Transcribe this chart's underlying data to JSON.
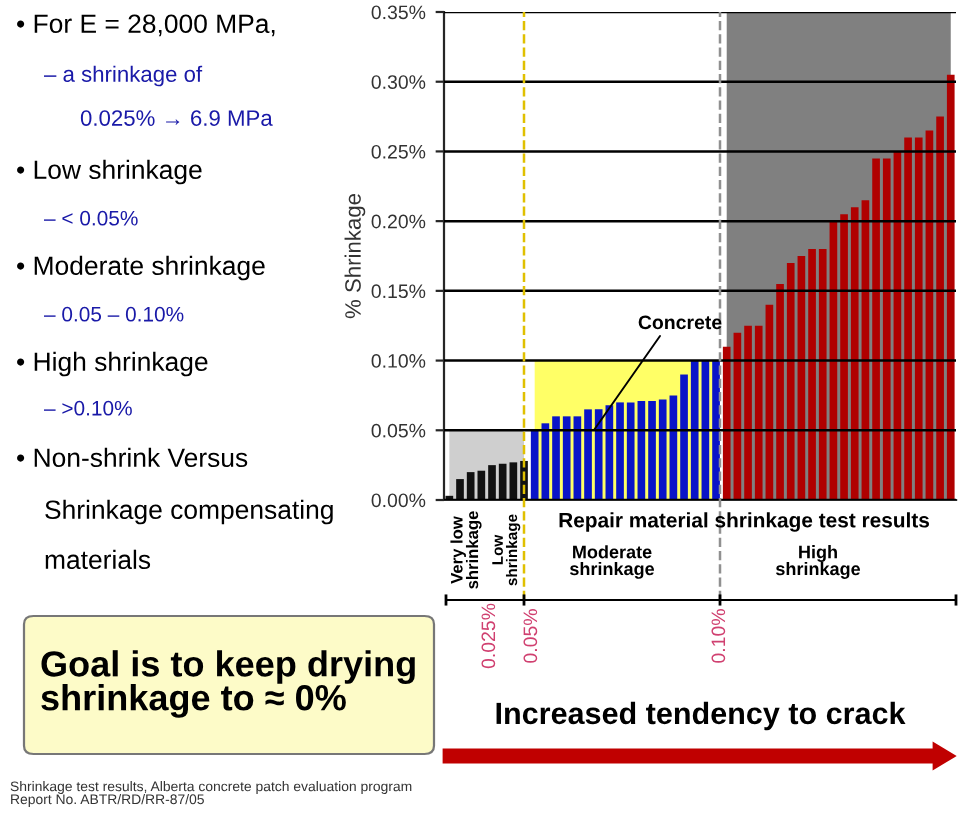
{
  "chart_data": {
    "type": "bar",
    "ylabel": "% Shrinkage",
    "ylim": [
      0,
      0.35
    ],
    "yticks": [
      {
        "value": 0,
        "label": "0.00%"
      },
      {
        "value": 0.05,
        "label": "0.05%"
      },
      {
        "value": 0.1,
        "label": "0.10%"
      },
      {
        "value": 0.15,
        "label": "0.15%"
      },
      {
        "value": 0.2,
        "label": "0.20%"
      },
      {
        "value": 0.25,
        "label": "0.25%"
      },
      {
        "value": 0.3,
        "label": "0.30%"
      },
      {
        "value": 0.35,
        "label": "0.35%"
      }
    ],
    "categories": [
      null,
      null,
      null,
      null,
      null,
      null,
      null,
      null,
      null,
      null,
      null,
      null,
      null,
      null,
      null,
      null,
      null,
      null,
      null,
      null,
      null,
      null,
      null,
      null,
      null,
      null,
      null,
      null,
      null,
      null,
      null,
      null,
      null,
      null,
      null,
      null,
      null,
      null,
      null,
      null,
      null,
      null,
      null,
      null,
      null,
      null,
      null,
      null
    ],
    "tick_labels": "y",
    "grid": "y",
    "series": [
      {
        "type": "area",
        "color": "#cfcfcf",
        "values": [
          0.05,
          0.05,
          0.05,
          0.05,
          0.05,
          0.05,
          0.05,
          0.05,
          null,
          null,
          null,
          null,
          null,
          null,
          null,
          null,
          null,
          null,
          null,
          null,
          null,
          null,
          null,
          null,
          null,
          null,
          null,
          null,
          null,
          null,
          null,
          null,
          null,
          null,
          null,
          null,
          null,
          null,
          null,
          null,
          null,
          null,
          null,
          null,
          null,
          null,
          null,
          null
        ]
      },
      {
        "type": "area",
        "color": "#ffff66",
        "values": [
          null,
          null,
          null,
          null,
          null,
          null,
          null,
          null,
          0.1,
          0.1,
          0.1,
          0.1,
          0.1,
          0.1,
          0.1,
          0.1,
          0.1,
          0.1,
          0.1,
          0.1,
          0.1,
          0.1,
          0.1,
          0.1,
          0.1,
          0.1,
          null,
          null,
          null,
          null,
          null,
          null,
          null,
          null,
          null,
          null,
          null,
          null,
          null,
          null,
          null,
          null,
          null,
          null,
          null,
          null,
          null,
          null
        ]
      },
      {
        "type": "area",
        "color": "#808080",
        "values": [
          null,
          null,
          null,
          null,
          null,
          null,
          null,
          null,
          null,
          null,
          null,
          null,
          null,
          null,
          null,
          null,
          null,
          null,
          null,
          null,
          null,
          null,
          null,
          null,
          null,
          null,
          0.35,
          0.35,
          0.35,
          0.35,
          0.35,
          0.35,
          0.35,
          0.35,
          0.35,
          0.35,
          0.35,
          0.35,
          0.35,
          0.35,
          0.35,
          0.35,
          0.35,
          0.35,
          0.35,
          0.35,
          0.35,
          0.35
        ]
      },
      {
        "colors": [
          "#111111",
          "#111111",
          "#111111",
          "#111111",
          "#111111",
          "#111111",
          "#111111",
          "#111111",
          "#0a14c8",
          "#0a14c8",
          "#0a14c8",
          "#0a14c8",
          "#0a14c8",
          "#0a14c8",
          "#0a14c8",
          "#0a14c8",
          "#0a14c8",
          "#0a14c8",
          "#0a14c8",
          "#0a14c8",
          "#0a14c8",
          "#0a14c8",
          "#0a14c8",
          "#0a14c8",
          "#0a14c8",
          "#0a14c8",
          "#b00000",
          "#b00000",
          "#b00000",
          "#b00000",
          "#b00000",
          "#b00000",
          "#b00000",
          "#b00000",
          "#b00000",
          "#b00000",
          "#b00000",
          "#b00000",
          "#b00000",
          "#b00000",
          "#b00000",
          "#b00000",
          "#b00000",
          "#b00000",
          "#b00000",
          "#b00000",
          "#b00000",
          "#b00000"
        ],
        "values": [
          0.003,
          0.015,
          0.02,
          0.021,
          0.025,
          0.026,
          0.027,
          0.028,
          0.05,
          0.055,
          0.06,
          0.06,
          0.06,
          0.065,
          0.065,
          0.068,
          0.07,
          0.07,
          0.071,
          0.071,
          0.072,
          0.075,
          0.09,
          0.1,
          0.1,
          0.1,
          0.11,
          0.12,
          0.125,
          0.125,
          0.14,
          0.155,
          0.17,
          0.175,
          0.18,
          0.18,
          0.2,
          0.205,
          0.21,
          0.215,
          0.245,
          0.245,
          0.25,
          0.26,
          0.26,
          0.265,
          0.275,
          0.305
        ]
      }
    ],
    "annotations": [
      "• For E = 28,000 MPa,",
      "– a shrinkage of",
      "0.025% → 6.9 MPa",
      "• Low shrinkage",
      "– < 0.05%",
      "• Moderate shrinkage",
      "– 0.05 – 0.10%",
      "• High shrinkage",
      "– >0.10%",
      "• Non-shrink Versus",
      "Shrinkage compensating",
      "materials",
      "Goal is to keep drying\nshrinkage to ≈ 0%",
      "Shrinkage test results, Alberta concrete patch evaluation program\nReport No. ABTR/RD/RR-87/05",
      "Repair material shrinkage test results",
      "Very low\nshrinkage",
      "Low\nshrinkage",
      "Moderate\nshrinkage",
      "High\nshrinkage",
      "0.025%",
      "0.05%",
      "0.10%",
      "Increased tendency to crack",
      "Concrete"
    ]
  }
}
